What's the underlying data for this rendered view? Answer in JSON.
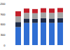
{
  "chart_data": {
    "type": "bar",
    "stacked": true,
    "tick_labels": "y",
    "categories": [
      null,
      null,
      null,
      null,
      null,
      null
    ],
    "series": [
      {
        "color": "#2f6ed3",
        "values": [
          520,
          640,
          640,
          650,
          640,
          650
        ]
      },
      {
        "color": "#1e2b47",
        "values": [
          145,
          125,
          120,
          125,
          125,
          125
        ]
      },
      {
        "color": "#a3a3a3",
        "values": [
          165,
          165,
          160,
          165,
          165,
          170
        ]
      },
      {
        "color": "#c21f2a",
        "values": [
          145,
          125,
          120,
          125,
          125,
          125
        ]
      }
    ],
    "ylim": [
      0,
      1200
    ],
    "yticks": [
      0,
      300,
      600,
      900,
      1200
    ],
    "grid": false
  }
}
